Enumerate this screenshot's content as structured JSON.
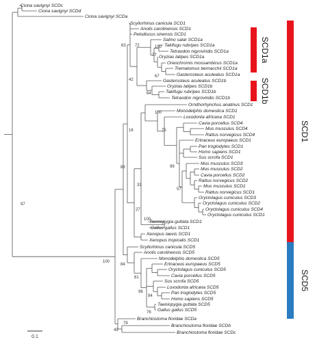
{
  "leaves": [
    "Ciona savignyi SCDc",
    "Ciona savignyi SCDd",
    "Ciona savignyi SCDa",
    "Scyliorhinus canicula SCD1",
    "Anolis carolinensis SCD1",
    "Pelodiscus sinensis SCD1",
    "Salmo salar SCD1a",
    "Takifugu rubripes SCD1a",
    "Tetraodon nigroviridis SCD1a",
    "Oryzias latipes SCD1a",
    "Oreochromis mossambicus SCD1a",
    "Trematomus bernacchii SCD1a",
    "Gasterosteus aculeatus SCD1a",
    "Gasterosteus aculeatus SCD1b",
    "Oryzias latipes SCD1b",
    "Takifugu rubripes SCD1b",
    "Tetraodon nigroviridis SCD1b",
    "Ornithorhynchus anatinus SCD1",
    "Monodelphis domestica SCD1",
    "Loxodonta africana SCD1",
    "Cavia porcellus SCD4",
    "Mus musculus SCD4",
    "Rattus norvegicus SCD4",
    "Erinaceus europaeus SCD1",
    "Pan troglodytes SCD1",
    "Homo sapiens SCD1",
    "Sus scrofa SCD1",
    "Mus musculus SCD3",
    "Mus musculus SCD2",
    "Cavia porcellus SCD2",
    "Rattus norvegicus SCD2",
    "Mus musculus SCD1",
    "Rattus norvegicus SCD1",
    "Oryctolagus cuniculus SCD3",
    "Oryctolagus cuniculus SCD2",
    "Oryctolagus cuniculus SCD4",
    "Oryctolagus cuniculus SCD1",
    "Taeniopygia guttata SCD1",
    "Gallus gallus SCD1",
    "Xenopus laevis SCD1",
    "Xenopus tropicalis SCD1",
    "Scyliorhinus canicula SCD5",
    "Anolis carolinensis SCD5",
    "Monodelphis domestica SCD5",
    "Erinaceus europaeus SCD5",
    "Oryctolagus cuniculus SCD5",
    "Cavia porcellus SCD5",
    "Sus scrofa SCD5",
    "Loxodonta africana SCD5",
    "Pan troglodytes SCD5",
    "Homo sapiens SCD5",
    "Taeniopygia guttata SCD5",
    "Gallus gallus SCD5",
    "Branchiostoma floridae SCDa",
    "Branchiostoma floridae SCDb",
    "Branchiostoma floridae SCDc"
  ],
  "bootstrap": [
    "97",
    "88",
    "100",
    "63",
    "72",
    "42",
    "16",
    "100",
    "75",
    "99",
    "33",
    "27",
    "100",
    "84",
    "81",
    "96",
    "94",
    "76",
    "49",
    "79",
    "100",
    "77",
    "67",
    "64",
    "57"
  ],
  "clades": {
    "scd1a": "SCD1a",
    "scd1b": "SCD1b",
    "scd1": "SCD1",
    "scd5": "SCD5"
  },
  "scale": "0.1"
}
